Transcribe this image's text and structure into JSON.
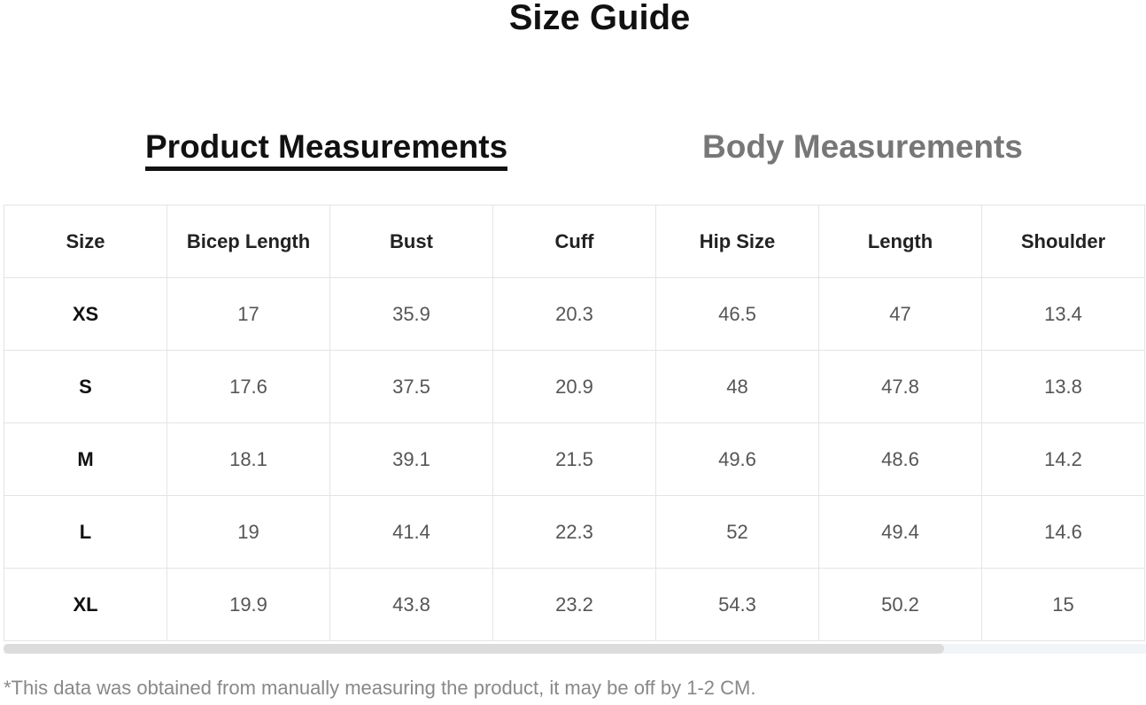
{
  "title": "Size Guide",
  "tabs": [
    {
      "label": "Product Measurements",
      "active": true
    },
    {
      "label": "Body Measurements",
      "active": false
    }
  ],
  "table": {
    "headers": [
      "Size",
      "Bicep Length",
      "Bust",
      "Cuff",
      "Hip Size",
      "Length",
      "Shoulder"
    ],
    "rows": [
      [
        "XS",
        "17",
        "35.9",
        "20.3",
        "46.5",
        "47",
        "13.4"
      ],
      [
        "S",
        "17.6",
        "37.5",
        "20.9",
        "48",
        "47.8",
        "13.8"
      ],
      [
        "M",
        "18.1",
        "39.1",
        "21.5",
        "49.6",
        "48.6",
        "14.2"
      ],
      [
        "L",
        "19",
        "41.4",
        "22.3",
        "52",
        "49.4",
        "14.6"
      ],
      [
        "XL",
        "19.9",
        "43.8",
        "23.2",
        "54.3",
        "50.2",
        "15"
      ]
    ]
  },
  "note": "*This data was obtained from manually measuring the product, it may be off by 1-2 CM."
}
